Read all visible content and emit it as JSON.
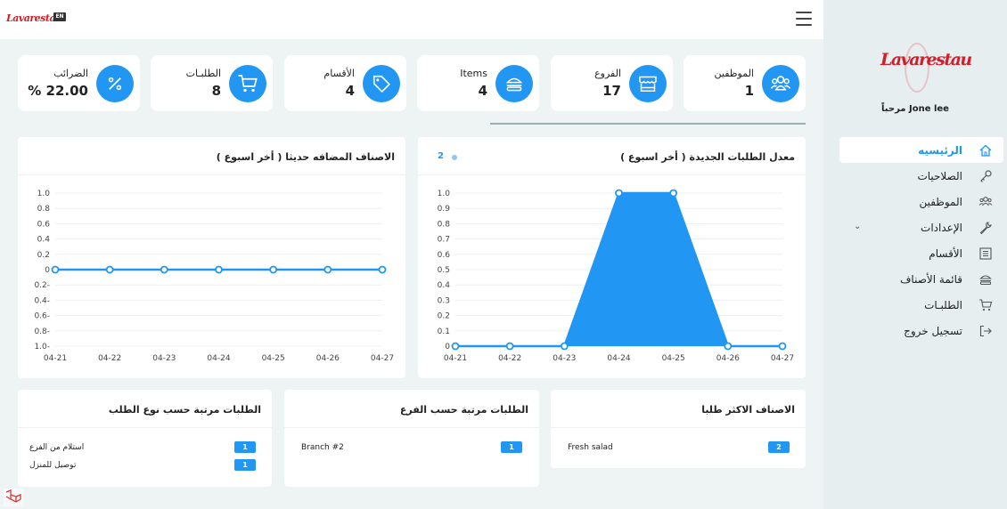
{
  "topbar": {
    "logo_text": "Lavarestau",
    "lang_badge": "EN"
  },
  "sidebar": {
    "logo_text": "Lavarestau",
    "greeting": "مرحباً Jone lee",
    "items": [
      {
        "label": "الرئيسيه",
        "icon": "home-icon",
        "active": true
      },
      {
        "label": "الصلاحيات",
        "icon": "key-icon"
      },
      {
        "label": "الموظفين",
        "icon": "users-icon"
      },
      {
        "label": "الإعدادات",
        "icon": "wrench-icon",
        "has_chevron": true
      },
      {
        "label": "الأقسام",
        "icon": "list-icon"
      },
      {
        "label": "قائمة الأصناف",
        "icon": "burger-icon"
      },
      {
        "label": "الطلبـات",
        "icon": "cart-icon"
      },
      {
        "label": "تسجيل خروج",
        "icon": "logout-icon"
      }
    ]
  },
  "stats": [
    {
      "label": "الموظفين",
      "value": "1",
      "icon": "users-icon"
    },
    {
      "label": "الفروع",
      "value": "17",
      "icon": "store-icon"
    },
    {
      "label": "Items",
      "value": "4",
      "icon": "burger-icon"
    },
    {
      "label": "الأقسام",
      "value": "4",
      "icon": "tag-icon"
    },
    {
      "label": "الطلبـات",
      "value": "8",
      "icon": "cart-icon"
    },
    {
      "label": "الضرائب",
      "value": "% 22.00",
      "icon": "percent-icon"
    }
  ],
  "accent_color": "#2196f3",
  "chart_data": [
    {
      "type": "area",
      "title": "معدل الطلبات الجديدة ( أخر اسبوع )",
      "legend_value": "2",
      "categories": [
        "04-21",
        "04-22",
        "04-23",
        "04-24",
        "04-25",
        "04-26",
        "04-27"
      ],
      "series": [
        {
          "values": [
            0,
            0,
            0,
            1,
            1,
            0,
            0
          ]
        }
      ],
      "ylim": [
        0,
        1
      ],
      "yticks": [
        "0",
        "0.1",
        "0.2",
        "0.3",
        "0.4",
        "0.5",
        "0.6",
        "0.7",
        "0.8",
        "0.9",
        "1.0"
      ],
      "grid": true
    },
    {
      "type": "line",
      "title": "الاصناف المضافه حديثا ( أخر اسبوع )",
      "categories": [
        "04-21",
        "04-22",
        "04-23",
        "04-24",
        "04-25",
        "04-26",
        "04-27"
      ],
      "series": [
        {
          "values": [
            0,
            0,
            0,
            0,
            0,
            0,
            0
          ]
        }
      ],
      "ylim": [
        -1,
        1
      ],
      "yticks": [
        "1.0-",
        "0.8-",
        "0.6-",
        "0.4-",
        "0.2-",
        "0",
        "0.2",
        "0.4",
        "0.6",
        "0.8",
        "1.0"
      ],
      "grid": true
    }
  ],
  "lists": [
    {
      "title": "الاصناف الاكثر طلبا",
      "rows": [
        {
          "name": "Fresh salad",
          "count": "2"
        }
      ]
    },
    {
      "title": "الطلبات مرتبة حسب الفرع",
      "rows": [
        {
          "name": "Branch #2",
          "count": "1"
        }
      ]
    },
    {
      "title": "الطلبات مرتبة حسب نوع الطلب",
      "rows": [
        {
          "name": "استلام من الفرع",
          "count": "1"
        },
        {
          "name": "توصيل للمنزل",
          "count": "1"
        }
      ]
    }
  ]
}
